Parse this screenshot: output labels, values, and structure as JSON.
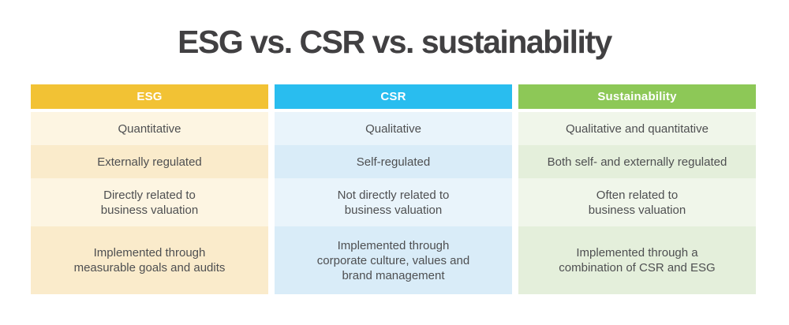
{
  "page": {
    "title": "ESG vs. CSR vs. sustainability",
    "background_color": "#ffffff",
    "title_color": "#414042",
    "body_text_color": "#4e4f51"
  },
  "table": {
    "columns": [
      {
        "id": "esg",
        "header": "ESG",
        "header_color": "#f2c234",
        "row_light_color": "#fdf5e2",
        "row_dark_color": "#faebcb",
        "rows": [
          "Quantitative",
          "Externally regulated",
          "Directly related to\nbusiness valuation",
          "Implemented through\nmeasurable goals and audits"
        ]
      },
      {
        "id": "csr",
        "header": "CSR",
        "header_color": "#29bdef",
        "row_light_color": "#e9f4fb",
        "row_dark_color": "#d9ecf8",
        "rows": [
          "Qualitative",
          "Self-regulated",
          "Not directly related to\nbusiness valuation",
          "Implemented through\ncorporate culture, values and\nbrand management"
        ]
      },
      {
        "id": "sustainability",
        "header": "Sustainability",
        "header_color": "#8dc857",
        "row_light_color": "#f0f6ea",
        "row_dark_color": "#e4efdb",
        "rows": [
          "Qualitative and quantitative",
          "Both self- and externally regulated",
          "Often related to\nbusiness valuation",
          "Implemented through a\ncombination of CSR and ESG"
        ]
      }
    ]
  }
}
